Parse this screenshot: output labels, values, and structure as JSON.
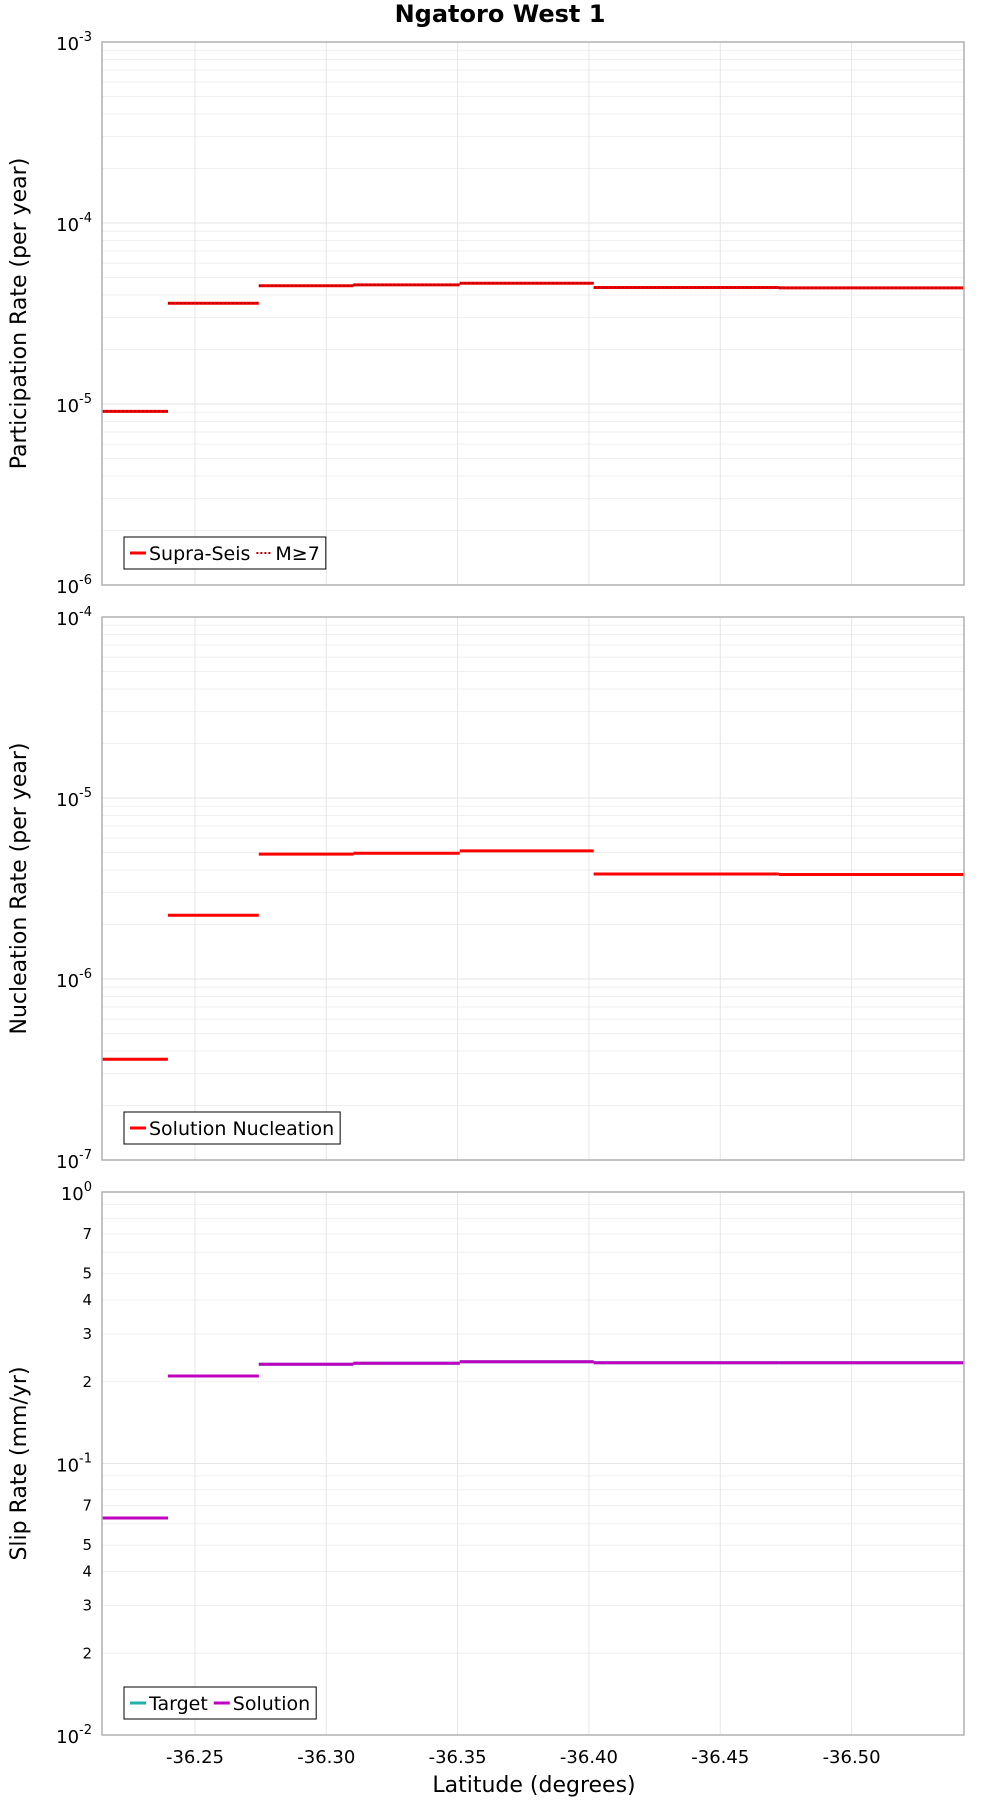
{
  "title": "Ngatoro West 1",
  "xlabel": "Latitude (degrees)",
  "x_ticks": [
    -36.25,
    -36.3,
    -36.35,
    -36.4,
    -36.45,
    -36.5
  ],
  "x_tick_labels": [
    "-36.25",
    "-36.30",
    "-36.35",
    "-36.40",
    "-36.45",
    "-36.50"
  ],
  "colors": {
    "red": "#ff0000",
    "teal": "#20b2aa",
    "magenta": "#c000c0",
    "grid": "#e6e6e6",
    "frame": "#b0b0b0"
  },
  "chart_data": [
    {
      "type": "line",
      "ylabel": "Participation Rate (per year)",
      "yscale": "log",
      "ylim_exp": [
        -6,
        -3
      ],
      "xlim": [
        -36.2146,
        -36.5428
      ],
      "legend": {
        "placement": "bottom-left",
        "entries": [
          "Supra-Seis",
          "M≥7"
        ]
      },
      "series": [
        {
          "name": "Supra-Seis",
          "color": "#ff0000",
          "style": "solid",
          "segments": [
            {
              "x": [
                -36.2146,
                -36.2397
              ],
              "y": 9.1e-06
            },
            {
              "x": [
                -36.2397,
                -36.2743
              ],
              "y": 3.6e-05
            },
            {
              "x": [
                -36.2743,
                -36.3103
              ],
              "y": 4.5e-05
            },
            {
              "x": [
                -36.3103,
                -36.3508
              ],
              "y": 4.55e-05
            },
            {
              "x": [
                -36.3508,
                -36.4018
              ],
              "y": 4.65e-05
            },
            {
              "x": [
                -36.4018,
                -36.4723
              ],
              "y": 4.4e-05
            },
            {
              "x": [
                -36.4723,
                -36.5428
              ],
              "y": 4.38e-05
            }
          ]
        },
        {
          "name": "M≥7",
          "color": "#ff0000",
          "style": "dotted",
          "segments": [
            {
              "x": [
                -36.2146,
                -36.2397
              ],
              "y": 9.1e-06
            },
            {
              "x": [
                -36.2397,
                -36.2743
              ],
              "y": 3.6e-05
            },
            {
              "x": [
                -36.2743,
                -36.3103
              ],
              "y": 4.5e-05
            },
            {
              "x": [
                -36.3103,
                -36.3508
              ],
              "y": 4.55e-05
            },
            {
              "x": [
                -36.3508,
                -36.4018
              ],
              "y": 4.65e-05
            },
            {
              "x": [
                -36.4018,
                -36.4723
              ],
              "y": 4.4e-05
            },
            {
              "x": [
                -36.4723,
                -36.5428
              ],
              "y": 4.38e-05
            }
          ]
        }
      ]
    },
    {
      "type": "line",
      "ylabel": "Nucleation Rate (per year)",
      "yscale": "log",
      "ylim_exp": [
        -7,
        -4
      ],
      "xlim": [
        -36.2146,
        -36.5428
      ],
      "legend": {
        "placement": "bottom-left",
        "entries": [
          "Solution Nucleation"
        ]
      },
      "series": [
        {
          "name": "Solution Nucleation",
          "color": "#ff0000",
          "style": "solid",
          "segments": [
            {
              "x": [
                -36.2146,
                -36.2397
              ],
              "y": 3.6e-07
            },
            {
              "x": [
                -36.2397,
                -36.2743
              ],
              "y": 2.25e-06
            },
            {
              "x": [
                -36.2743,
                -36.3103
              ],
              "y": 4.9e-06
            },
            {
              "x": [
                -36.3103,
                -36.3508
              ],
              "y": 4.95e-06
            },
            {
              "x": [
                -36.3508,
                -36.4018
              ],
              "y": 5.1e-06
            },
            {
              "x": [
                -36.4018,
                -36.4723
              ],
              "y": 3.8e-06
            },
            {
              "x": [
                -36.4723,
                -36.5428
              ],
              "y": 3.78e-06
            }
          ]
        }
      ]
    },
    {
      "type": "line",
      "ylabel": "Slip Rate (mm/yr)",
      "yscale": "log",
      "ylim_exp": [
        -2,
        0
      ],
      "xlim": [
        -36.2146,
        -36.5428
      ],
      "minor_tick_labels": [
        "2",
        "3",
        "4",
        "5",
        "7"
      ],
      "legend": {
        "placement": "bottom-left",
        "entries": [
          "Target",
          "Solution"
        ]
      },
      "series": [
        {
          "name": "Target",
          "color": "#20b2aa",
          "style": "solid",
          "segments": [
            {
              "x": [
                -36.2146,
                -36.2397
              ],
              "y": 0.063
            },
            {
              "x": [
                -36.2397,
                -36.2743
              ],
              "y": 0.21
            },
            {
              "x": [
                -36.2743,
                -36.3103
              ],
              "y": 0.232
            },
            {
              "x": [
                -36.3103,
                -36.3508
              ],
              "y": 0.234
            },
            {
              "x": [
                -36.3508,
                -36.4018
              ],
              "y": 0.237
            },
            {
              "x": [
                -36.4018,
                -36.4723
              ],
              "y": 0.235
            },
            {
              "x": [
                -36.4723,
                -36.5428
              ],
              "y": 0.235
            }
          ]
        },
        {
          "name": "Solution",
          "color": "#c000c0",
          "style": "solid",
          "segments": [
            {
              "x": [
                -36.2146,
                -36.2397
              ],
              "y": 0.063
            },
            {
              "x": [
                -36.2397,
                -36.2743
              ],
              "y": 0.21
            },
            {
              "x": [
                -36.2743,
                -36.3103
              ],
              "y": 0.232
            },
            {
              "x": [
                -36.3103,
                -36.3508
              ],
              "y": 0.234
            },
            {
              "x": [
                -36.3508,
                -36.4018
              ],
              "y": 0.237
            },
            {
              "x": [
                -36.4018,
                -36.4723
              ],
              "y": 0.235
            },
            {
              "x": [
                -36.4723,
                -36.5428
              ],
              "y": 0.235
            }
          ]
        }
      ]
    }
  ]
}
